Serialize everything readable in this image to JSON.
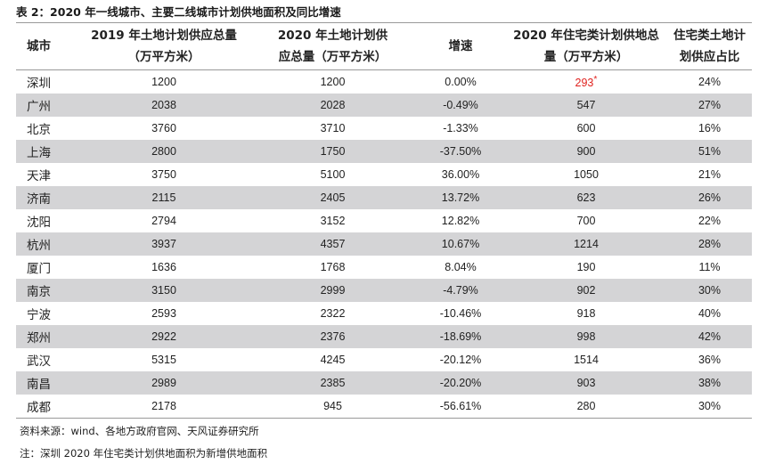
{
  "title": "表 2：2020 年一线城市、主要二线城市计划供地面积及同比增速",
  "table": {
    "headers": [
      [
        "城市"
      ],
      [
        "2019 年土地计划供应总量",
        "（万平方米）"
      ],
      [
        "2020 年土地计划供",
        "应总量（万平方米）"
      ],
      [
        "增速"
      ],
      [
        "2020 年住宅类计划供地总",
        "量（万平方米）"
      ],
      [
        "住宅类土地计",
        "划供应占比"
      ]
    ],
    "rows": [
      {
        "city": "深圳",
        "supply_2019": "1200",
        "supply_2020": "1200",
        "growth": "0.00%",
        "residential": "293",
        "residential_mark": "*",
        "share": "24%"
      },
      {
        "city": "广州",
        "supply_2019": "2038",
        "supply_2020": "2028",
        "growth": "-0.49%",
        "residential": "547",
        "share": "27%"
      },
      {
        "city": "北京",
        "supply_2019": "3760",
        "supply_2020": "3710",
        "growth": "-1.33%",
        "residential": "600",
        "share": "16%"
      },
      {
        "city": "上海",
        "supply_2019": "2800",
        "supply_2020": "1750",
        "growth": "-37.50%",
        "residential": "900",
        "share": "51%"
      },
      {
        "city": "天津",
        "supply_2019": "3750",
        "supply_2020": "5100",
        "growth": "36.00%",
        "residential": "1050",
        "share": "21%"
      },
      {
        "city": "济南",
        "supply_2019": "2115",
        "supply_2020": "2405",
        "growth": "13.72%",
        "residential": "623",
        "share": "26%"
      },
      {
        "city": "沈阳",
        "supply_2019": "2794",
        "supply_2020": "3152",
        "growth": "12.82%",
        "residential": "700",
        "share": "22%"
      },
      {
        "city": "杭州",
        "supply_2019": "3937",
        "supply_2020": "4357",
        "growth": "10.67%",
        "residential": "1214",
        "share": "28%"
      },
      {
        "city": "厦门",
        "supply_2019": "1636",
        "supply_2020": "1768",
        "growth": "8.04%",
        "residential": "190",
        "share": "11%"
      },
      {
        "city": "南京",
        "supply_2019": "3150",
        "supply_2020": "2999",
        "growth": "-4.79%",
        "residential": "902",
        "share": "30%"
      },
      {
        "city": "宁波",
        "supply_2019": "2593",
        "supply_2020": "2322",
        "growth": "-10.46%",
        "residential": "918",
        "share": "40%"
      },
      {
        "city": "郑州",
        "supply_2019": "2922",
        "supply_2020": "2376",
        "growth": "-18.69%",
        "residential": "998",
        "share": "42%"
      },
      {
        "city": "武汉",
        "supply_2019": "5315",
        "supply_2020": "4245",
        "growth": "-20.12%",
        "residential": "1514",
        "share": "36%"
      },
      {
        "city": "南昌",
        "supply_2019": "2989",
        "supply_2020": "2385",
        "growth": "-20.20%",
        "residential": "903",
        "share": "38%"
      },
      {
        "city": "成都",
        "supply_2019": "2178",
        "supply_2020": "945",
        "growth": "-56.61%",
        "residential": "280",
        "share": "30%"
      }
    ]
  },
  "source": "资料来源：wind、各地方政府官网、天风证券研究所",
  "note": "注：深圳 2020 年住宅类计划供地面积为新增供地面积",
  "colors": {
    "highlight": "#e0221f",
    "row_shade": "#d4d4d6",
    "rule": "#999999"
  }
}
